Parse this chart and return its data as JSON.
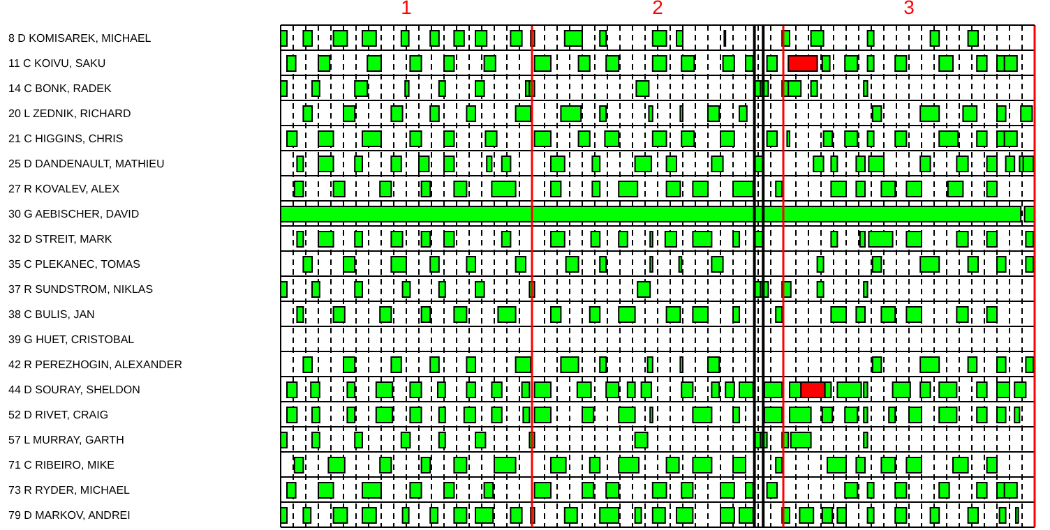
{
  "chart_data": {
    "type": "bar",
    "orientation": "horizontal",
    "categories": [
      "8 D KOMISAREK, MICHAEL",
      "11 C KOIVU, SAKU",
      "14 C BONK, RADEK",
      "20 L ZEDNIK, RICHARD",
      "21 C HIGGINS, CHRIS",
      "25 D DANDENAULT, MATHIEU",
      "27 R KOVALEV, ALEX",
      "30 G AEBISCHER, DAVID",
      "32 D STREIT, MARK",
      "35 C PLEKANEC, TOMAS",
      "37 R SUNDSTROM, NIKLAS",
      "38 C BULIS, JAN",
      "39 G HUET, CRISTOBAL",
      "42 R PEREZHOGIN, ALEXANDER",
      "44 D SOURAY, SHELDON",
      "52 D RIVET, CRAIG",
      "57 L MURRAY, GARTH",
      "71 C RIBEIRO, MIKE",
      "73 R RYDER, MICHAEL",
      "79 D MARKOV, ANDREI"
    ],
    "xlim": [
      0.5,
      3.5
    ],
    "xticks": [
      {
        "value": 0.55,
        "label": null
      },
      {
        "value": 0.6,
        "label": null
      },
      {
        "value": 0.65,
        "label": null
      },
      {
        "value": 0.7,
        "label": null
      },
      {
        "value": 0.75,
        "label": null
      },
      {
        "value": 0.8,
        "label": null
      },
      {
        "value": 0.85,
        "label": null
      },
      {
        "value": 0.9,
        "label": null
      },
      {
        "value": 0.95,
        "label": null
      },
      1,
      {
        "value": 1.05,
        "label": null
      },
      {
        "value": 1.1,
        "label": null
      },
      {
        "value": 1.15,
        "label": null
      },
      {
        "value": 1.2,
        "label": null
      },
      {
        "value": 1.25,
        "label": null
      },
      {
        "value": 1.3,
        "label": null
      },
      {
        "value": 1.35,
        "label": null
      },
      {
        "value": 1.4,
        "label": null
      },
      {
        "value": 1.45,
        "label": null
      },
      {
        "value": 1.55,
        "label": null
      },
      {
        "value": 1.6,
        "label": null
      },
      {
        "value": 1.65,
        "label": null
      },
      {
        "value": 1.7,
        "label": null
      },
      {
        "value": 1.75,
        "label": null
      },
      {
        "value": 1.8,
        "label": null
      },
      {
        "value": 1.85,
        "label": null
      },
      {
        "value": 1.9,
        "label": null
      },
      {
        "value": 1.95,
        "label": null
      },
      2,
      {
        "value": 2.05,
        "label": null
      },
      {
        "value": 2.1,
        "label": null
      },
      {
        "value": 2.15,
        "label": null
      },
      {
        "value": 2.2,
        "label": null
      },
      {
        "value": 2.25,
        "label": null
      },
      {
        "value": 2.3,
        "label": null
      },
      {
        "value": 2.35,
        "label": null
      },
      {
        "value": 2.4,
        "label": null
      },
      {
        "value": 2.45,
        "label": null
      },
      {
        "value": 2.55,
        "label": null
      },
      {
        "value": 2.6,
        "label": null
      },
      {
        "value": 2.65,
        "label": null
      },
      {
        "value": 2.7,
        "label": null
      },
      {
        "value": 2.75,
        "label": null
      },
      {
        "value": 2.8,
        "label": null
      },
      {
        "value": 2.85,
        "label": null
      },
      {
        "value": 2.9,
        "label": null
      },
      {
        "value": 2.95,
        "label": null
      },
      3,
      {
        "value": 3.05,
        "label": null
      },
      {
        "value": 3.1,
        "label": null
      },
      {
        "value": 3.15,
        "label": null
      },
      {
        "value": 3.2,
        "label": null
      },
      {
        "value": 3.25,
        "label": null
      },
      {
        "value": 3.3,
        "label": null
      },
      {
        "value": 3.35,
        "label": null
      },
      {
        "value": 3.4,
        "label": null
      },
      {
        "value": 3.45,
        "label": null
      }
    ],
    "grid": true,
    "ref_lines": [
      {
        "axis": "x",
        "value": 1.5,
        "color": "#ff0000"
      },
      {
        "axis": "x",
        "value": 2.385,
        "color": "#000000"
      },
      {
        "axis": "x",
        "value": 2.42,
        "color": "#000000"
      },
      {
        "axis": "x",
        "value": 2.5,
        "color": "#ff0000"
      },
      {
        "axis": "x",
        "value": 3.5,
        "color": "#ff0000"
      }
    ],
    "series": [
      {
        "color": "#00ff00",
        "base": [
          0.5,
          0.525,
          0.5,
          0.59,
          0.525,
          0.565,
          0.555,
          0.5,
          0.565,
          0.59,
          0.5,
          0.565,
          null,
          0.59,
          0.525,
          0.525,
          0.5,
          0.555,
          0.525,
          0.5
        ],
        "values": [
          0.025,
          0.035,
          0.025,
          0.035,
          0.04,
          0.025,
          0.035,
          2.945,
          0.025,
          0.035,
          0.025,
          0.025,
          null,
          0.035,
          0.04,
          0.04,
          0.025,
          0.035,
          0.035,
          0.025
        ]
      },
      {
        "color": "#00ff00",
        "base": [
          0.59,
          0.65,
          0.625,
          0.75,
          0.65,
          0.65,
          0.71,
          3.46,
          0.65,
          0.75,
          0.625,
          0.71,
          null,
          0.75,
          0.62,
          0.625,
          0.625,
          0.69,
          0.65,
          0.59
        ],
        "values": [
          0.035,
          0.045,
          0.03,
          0.045,
          0.06,
          0.06,
          0.045,
          0.04,
          0.06,
          0.045,
          0.03,
          0.045,
          null,
          0.045,
          0.035,
          0.03,
          0.03,
          0.065,
          0.06,
          0.03
        ]
      },
      {
        "color": "#00ff00",
        "base": [
          0.71,
          0.845,
          0.795,
          0.94,
          0.825,
          0.795,
          0.895,
          null,
          0.795,
          0.94,
          0.795,
          0.895,
          null,
          0.94,
          0.765,
          0.765,
          0.795,
          0.895,
          0.825,
          0.71
        ],
        "values": [
          0.055,
          0.055,
          0.05,
          0.045,
          0.075,
          0.03,
          0.045,
          null,
          0.03,
          0.06,
          0.03,
          0.045,
          null,
          0.04,
          0.03,
          0.03,
          0.03,
          0.045,
          0.075,
          0.055
        ]
      },
      {
        "color": "#00ff00",
        "base": [
          0.825,
          1.015,
          0.995,
          1.095,
          1.015,
          0.94,
          1.06,
          null,
          0.94,
          1.095,
          0.985,
          1.06,
          null,
          1.095,
          0.88,
          0.88,
          0.98,
          1.06,
          1.015,
          0.825
        ],
        "values": [
          0.055,
          0.045,
          0.015,
          0.035,
          0.045,
          0.04,
          0.035,
          null,
          0.045,
          0.035,
          0.03,
          0.035,
          null,
          0.035,
          0.065,
          0.065,
          0.035,
          0.035,
          0.045,
          0.055
        ]
      },
      {
        "color": "#00ff00",
        "base": [
          0.98,
          1.15,
          1.13,
          1.24,
          1.15,
          1.05,
          1.19,
          null,
          1.06,
          1.24,
          1.13,
          1.19,
          null,
          1.24,
          1.015,
          1.015,
          1.13,
          1.19,
          1.15,
          0.985
        ],
        "values": [
          0.03,
          0.04,
          0.025,
          0.035,
          0.04,
          0.04,
          0.05,
          null,
          0.035,
          0.035,
          0.025,
          0.05,
          null,
          0.035,
          0.045,
          0.045,
          0.025,
          0.05,
          0.04,
          0.025
        ]
      },
      {
        "color": "#00ff00",
        "base": [
          1.095,
          1.31,
          1.275,
          1.435,
          1.315,
          1.15,
          1.34,
          null,
          1.15,
          1.435,
          1.275,
          1.365,
          null,
          1.435,
          1.125,
          1.13,
          1.275,
          1.35,
          1.31,
          1.095
        ],
        "values": [
          0.035,
          0.045,
          0.035,
          0.06,
          0.045,
          0.04,
          0.095,
          null,
          0.04,
          0.04,
          0.035,
          0.07,
          null,
          0.06,
          0.03,
          0.025,
          0.04,
          0.085,
          0.035,
          0.03
        ]
      },
      {
        "color": "#00ff00",
        "base": [
          1.19,
          1.51,
          1.475,
          1.615,
          1.51,
          1.32,
          1.575,
          null,
          1.38,
          1.635,
          1.49,
          1.575,
          null,
          1.615,
          1.24,
          1.23,
          1.49,
          1.575,
          1.51,
          1.19
        ],
        "values": [
          0.04,
          0.065,
          0.015,
          0.08,
          0.065,
          0.02,
          0.04,
          null,
          0.035,
          0.05,
          0.02,
          0.04,
          null,
          0.07,
          0.035,
          0.045,
          0.02,
          0.06,
          0.065,
          0.05
        ]
      },
      {
        "color": "#00ff00",
        "base": [
          1.275,
          1.685,
          1.49,
          1.77,
          1.685,
          1.38,
          1.74,
          null,
          1.575,
          1.77,
          1.92,
          1.73,
          null,
          1.77,
          1.34,
          1.34,
          1.91,
          1.73,
          1.7,
          1.275
        ],
        "values": [
          0.045,
          0.045,
          0.02,
          0.025,
          0.045,
          0.035,
          0.03,
          null,
          0.055,
          0.025,
          0.05,
          0.04,
          null,
          0.025,
          0.04,
          0.04,
          0.05,
          0.04,
          0.045,
          0.07
        ]
      },
      {
        "color": "#00ff00",
        "base": [
          1.415,
          1.795,
          1.915,
          1.965,
          1.79,
          1.575,
          1.845,
          null,
          1.735,
          1.97,
          2.385,
          1.845,
          null,
          1.96,
          1.46,
          1.465,
          2.385,
          1.845,
          1.795,
          1.415
        ],
        "values": [
          0.045,
          0.05,
          0.05,
          0.015,
          0.055,
          0.055,
          0.075,
          null,
          0.035,
          0.01,
          0.025,
          0.065,
          null,
          0.02,
          0.03,
          0.025,
          0.025,
          0.08,
          0.05,
          0.045
        ]
      },
      {
        "color": "#00ff00",
        "base": [
          1.495,
          1.98,
          2.385,
          2.09,
          1.98,
          1.74,
          2.035,
          null,
          1.845,
          2.085,
          2.41,
          2.035,
          null,
          2.09,
          1.51,
          1.51,
          2.41,
          2.035,
          1.98,
          1.495
        ],
        "values": [
          0.015,
          0.055,
          0.025,
          0.01,
          0.055,
          0.03,
          0.055,
          null,
          0.035,
          0.01,
          0.03,
          0.055,
          null,
          0.01,
          0.065,
          0.065,
          0.025,
          0.05,
          0.055,
          0.015
        ]
      },
      {
        "color": "#00ff00",
        "base": [
          1.63,
          2.095,
          2.41,
          2.2,
          2.095,
          1.91,
          2.14,
          null,
          1.97,
          2.215,
          2.495,
          2.14,
          null,
          2.2,
          1.68,
          1.7,
          2.495,
          2.14,
          2.095,
          1.63
        ],
        "values": [
          0.07,
          0.05,
          0.03,
          0.045,
          0.05,
          0.065,
          0.06,
          null,
          0.01,
          0.045,
          0.035,
          0.06,
          null,
          0.045,
          0.055,
          0.045,
          0.025,
          0.075,
          0.045,
          0.05
        ]
      },
      {
        "color": "#00ff00",
        "base": [
          1.77,
          2.26,
          2.495,
          2.325,
          2.25,
          2.035,
          2.3,
          null,
          2.03,
          2.635,
          2.635,
          2.3,
          null,
          2.855,
          1.795,
          1.845,
          2.53,
          2.3,
          2.25,
          1.77
        ],
        "values": [
          0.025,
          0.045,
          0.025,
          0.03,
          0.055,
          0.04,
          0.08,
          null,
          0.045,
          0.025,
          0.025,
          0.025,
          null,
          0.035,
          0.05,
          0.065,
          0.08,
          0.05,
          0.055,
          0.075
        ]
      },
      {
        "color": "#00ff00",
        "base": [
          1.98,
          2.35,
          2.52,
          2.855,
          2.435,
          2.215,
          2.47,
          null,
          2.14,
          2.855,
          2.82,
          2.47,
          null,
          3.045,
          1.88,
          1.97,
          2.82,
          2.47,
          2.35,
          1.91
        ],
        "values": [
          0.055,
          0.03,
          0.05,
          0.035,
          0.04,
          0.045,
          0.025,
          null,
          0.075,
          0.035,
          0.015,
          0.025,
          null,
          0.075,
          0.03,
          0.01,
          0.015,
          0.025,
          0.03,
          0.025
        ]
      },
      {
        "color": "#00ff00",
        "base": [
          2.075,
          2.435,
          2.61,
          3.045,
          2.515,
          2.385,
          2.69,
          null,
          2.3,
          3.045,
          null,
          2.69,
          null,
          3.235,
          1.935,
          2.14,
          null,
          2.675,
          2.435,
          1.98
        ],
        "values": [
          0.025,
          0.04,
          0.025,
          0.075,
          0.01,
          0.035,
          0.06,
          null,
          0.025,
          0.075,
          null,
          0.06,
          null,
          0.035,
          0.04,
          0.075,
          null,
          0.075,
          0.04,
          0.05
        ]
      },
      {
        "color": "#00ff00",
        "base": [
          2.265,
          2.655,
          2.82,
          3.215,
          2.66,
          2.62,
          2.79,
          null,
          2.385,
          3.235,
          null,
          2.79,
          null,
          3.35,
          2.095,
          2.3,
          null,
          2.79,
          2.745,
          2.075
        ],
        "values": [
          0.005,
          0.03,
          0.015,
          0.055,
          0.035,
          0.04,
          0.035,
          null,
          0.035,
          0.04,
          null,
          0.035,
          null,
          0.035,
          0.045,
          0.025,
          null,
          0.035,
          0.05,
          0.065
        ]
      },
      {
        "color": "#00ff00",
        "base": [
          2.495,
          2.745,
          null,
          3.35,
          2.745,
          2.69,
          2.89,
          null,
          2.69,
          3.35,
          null,
          2.89,
          null,
          3.465,
          2.215,
          2.425,
          null,
          2.89,
          2.835,
          2.25
        ],
        "values": [
          0.03,
          0.05,
          null,
          0.035,
          0.05,
          0.025,
          0.055,
          null,
          0.025,
          0.035,
          null,
          0.055,
          null,
          0.03,
          0.03,
          0.07,
          null,
          0.055,
          0.025,
          0.055
        ]
      },
      {
        "color": "#00ff00",
        "base": [
          2.61,
          2.835,
          null,
          3.445,
          2.835,
          2.79,
          2.99,
          null,
          2.805,
          3.465,
          null,
          2.99,
          null,
          null,
          2.27,
          2.525,
          null,
          2.99,
          2.945,
          2.325
        ],
        "values": [
          0.05,
          0.025,
          null,
          0.045,
          0.025,
          0.035,
          0.06,
          null,
          0.02,
          0.03,
          null,
          0.06,
          null,
          null,
          0.035,
          0.085,
          null,
          0.06,
          0.045,
          0.055
        ]
      },
      {
        "color": "#00ff00",
        "base": [
          2.835,
          2.945,
          null,
          null,
          2.945,
          2.84,
          3.155,
          null,
          2.84,
          null,
          null,
          3.19,
          null,
          null,
          2.325,
          2.655,
          null,
          3.175,
          3.12,
          2.495
        ],
        "values": [
          0.025,
          0.045,
          null,
          null,
          0.045,
          0.06,
          0.06,
          null,
          0.095,
          null,
          null,
          0.045,
          null,
          null,
          0.055,
          0.04,
          null,
          0.06,
          0.04,
          0.03
        ]
      },
      {
        "color": "#00ff00",
        "base": [
          3.085,
          3.12,
          null,
          null,
          3.12,
          3.045,
          3.31,
          null,
          2.99,
          null,
          null,
          3.31,
          null,
          null,
          2.425,
          2.745,
          null,
          3.31,
          3.27,
          2.565
        ],
        "values": [
          0.035,
          0.055,
          null,
          null,
          0.075,
          0.04,
          0.04,
          null,
          0.06,
          null,
          null,
          0.04,
          null,
          null,
          0.07,
          0.05,
          null,
          0.04,
          0.04,
          0.055
        ]
      },
      {
        "color": "#00ff00",
        "base": [
          3.235,
          3.27,
          null,
          null,
          3.27,
          3.19,
          null,
          null,
          3.19,
          null,
          null,
          null,
          null,
          null,
          2.525,
          2.82,
          null,
          null,
          3.35,
          2.655
        ],
        "values": [
          0.04,
          0.04,
          null,
          null,
          0.04,
          0.045,
          null,
          null,
          0.045,
          null,
          null,
          null,
          null,
          null,
          0.045,
          0.015,
          null,
          null,
          0.03,
          0.04
        ]
      },
      {
        "color": "#00ff00",
        "base": [
          null,
          3.35,
          null,
          null,
          3.35,
          3.31,
          null,
          null,
          3.31,
          null,
          null,
          null,
          null,
          null,
          2.665,
          2.92,
          null,
          null,
          3.38,
          2.715
        ],
        "values": [
          null,
          0.03,
          null,
          null,
          0.03,
          0.04,
          null,
          null,
          0.04,
          null,
          null,
          null,
          null,
          null,
          0.025,
          0.025,
          null,
          null,
          0.05,
          0.035
        ]
      },
      {
        "color": "#00ff00",
        "base": [
          null,
          3.38,
          null,
          null,
          3.38,
          3.385,
          null,
          null,
          3.465,
          null,
          null,
          null,
          null,
          null,
          2.715,
          3.0,
          null,
          null,
          null,
          2.835
        ],
        "values": [
          null,
          0.05,
          null,
          null,
          0.05,
          0.035,
          null,
          null,
          0.03,
          null,
          null,
          null,
          null,
          null,
          0.095,
          0.05,
          null,
          null,
          null,
          0.025
        ]
      },
      {
        "color": "#00ff00",
        "base": [
          null,
          null,
          null,
          null,
          null,
          3.44,
          null,
          null,
          null,
          null,
          null,
          null,
          null,
          null,
          2.82,
          3.12,
          null,
          null,
          null,
          2.945
        ],
        "values": [
          null,
          null,
          null,
          null,
          null,
          0.015,
          null,
          null,
          null,
          null,
          null,
          null,
          null,
          null,
          0.015,
          0.07,
          null,
          null,
          null,
          0.045
        ]
      },
      {
        "color": "#00ff00",
        "base": [
          null,
          null,
          null,
          null,
          null,
          3.455,
          null,
          null,
          null,
          null,
          null,
          null,
          null,
          null,
          2.935,
          3.27,
          null,
          null,
          null,
          3.085
        ],
        "values": [
          null,
          null,
          null,
          null,
          null,
          0.04,
          null,
          null,
          null,
          null,
          null,
          null,
          null,
          null,
          0.07,
          0.04,
          null,
          null,
          null,
          0.035
        ]
      },
      {
        "color": "#00ff00",
        "base": [
          null,
          null,
          null,
          null,
          null,
          null,
          null,
          null,
          null,
          null,
          null,
          null,
          null,
          null,
          3.045,
          3.35,
          null,
          null,
          null,
          3.235
        ],
        "values": [
          null,
          null,
          null,
          null,
          null,
          null,
          null,
          null,
          null,
          null,
          null,
          null,
          null,
          null,
          0.04,
          0.035,
          null,
          null,
          null,
          0.04
        ]
      },
      {
        "color": "#00ff00",
        "base": [
          null,
          null,
          null,
          null,
          null,
          null,
          null,
          null,
          null,
          null,
          null,
          null,
          null,
          null,
          3.12,
          3.42,
          null,
          null,
          null,
          3.36
        ],
        "values": [
          null,
          null,
          null,
          null,
          null,
          null,
          null,
          null,
          null,
          null,
          null,
          null,
          null,
          null,
          0.07,
          0.02,
          null,
          null,
          null,
          0.025
        ]
      },
      {
        "color": "#00ff00",
        "base": [
          null,
          null,
          null,
          null,
          null,
          null,
          null,
          null,
          null,
          null,
          null,
          null,
          null,
          null,
          3.27,
          null,
          null,
          null,
          null,
          3.425
        ],
        "values": [
          null,
          null,
          null,
          null,
          null,
          null,
          null,
          null,
          null,
          null,
          null,
          null,
          null,
          null,
          0.04,
          null,
          null,
          null,
          null,
          0.01
        ]
      },
      {
        "color": "#00ff00",
        "base": [
          null,
          null,
          null,
          null,
          null,
          null,
          null,
          null,
          null,
          null,
          null,
          null,
          null,
          null,
          3.35,
          null,
          null,
          null,
          null,
          null
        ],
        "values": [
          null,
          null,
          null,
          null,
          null,
          null,
          null,
          null,
          null,
          null,
          null,
          null,
          null,
          null,
          0.05,
          null,
          null,
          null,
          null,
          null
        ]
      },
      {
        "color": "#00ff00",
        "base": [
          null,
          null,
          null,
          null,
          null,
          null,
          null,
          null,
          null,
          null,
          null,
          null,
          null,
          null,
          3.42,
          null,
          null,
          null,
          null,
          null
        ],
        "values": [
          null,
          null,
          null,
          null,
          null,
          null,
          null,
          null,
          null,
          null,
          null,
          null,
          null,
          null,
          0.045,
          null,
          null,
          null,
          null,
          null
        ]
      },
      {
        "color": "#ff0000",
        "base": [
          null,
          2.52,
          null,
          null,
          null,
          null,
          null,
          null,
          null,
          null,
          null,
          null,
          null,
          null,
          2.57,
          null,
          null,
          null,
          null,
          null
        ],
        "values": [
          null,
          0.115,
          null,
          null,
          null,
          null,
          null,
          null,
          null,
          null,
          null,
          null,
          null,
          null,
          0.095,
          null,
          null,
          null,
          null,
          null
        ]
      }
    ]
  }
}
